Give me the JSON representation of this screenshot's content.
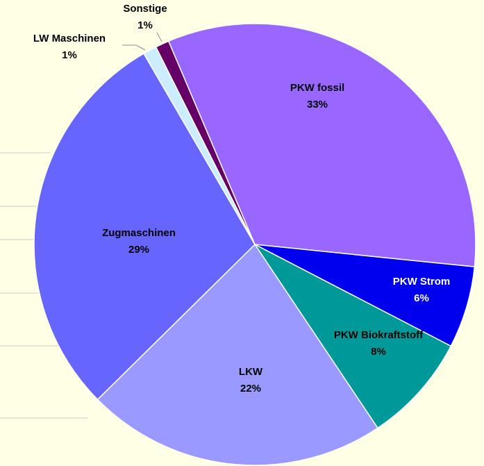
{
  "chart_data": {
    "type": "pie",
    "categories": [
      "PKW fossil",
      "PKW Strom",
      "PKW Biokraftstoff",
      "LKW",
      "Zugmaschinen",
      "LW Maschinen",
      "Sonstige"
    ],
    "values": [
      33,
      6,
      8,
      22,
      29,
      1,
      1
    ],
    "value_labels": [
      "33%",
      "6%",
      "8%",
      "22%",
      "29%",
      "1%",
      "1%"
    ],
    "colors": [
      "#9966ff",
      "#0000ee",
      "#009999",
      "#9999ff",
      "#6666ff",
      "#ccecff",
      "#660066"
    ],
    "label_colors": [
      "#000000",
      "#ffffff",
      "#000000",
      "#000000",
      "#000000",
      "#000000",
      "#000000"
    ]
  }
}
